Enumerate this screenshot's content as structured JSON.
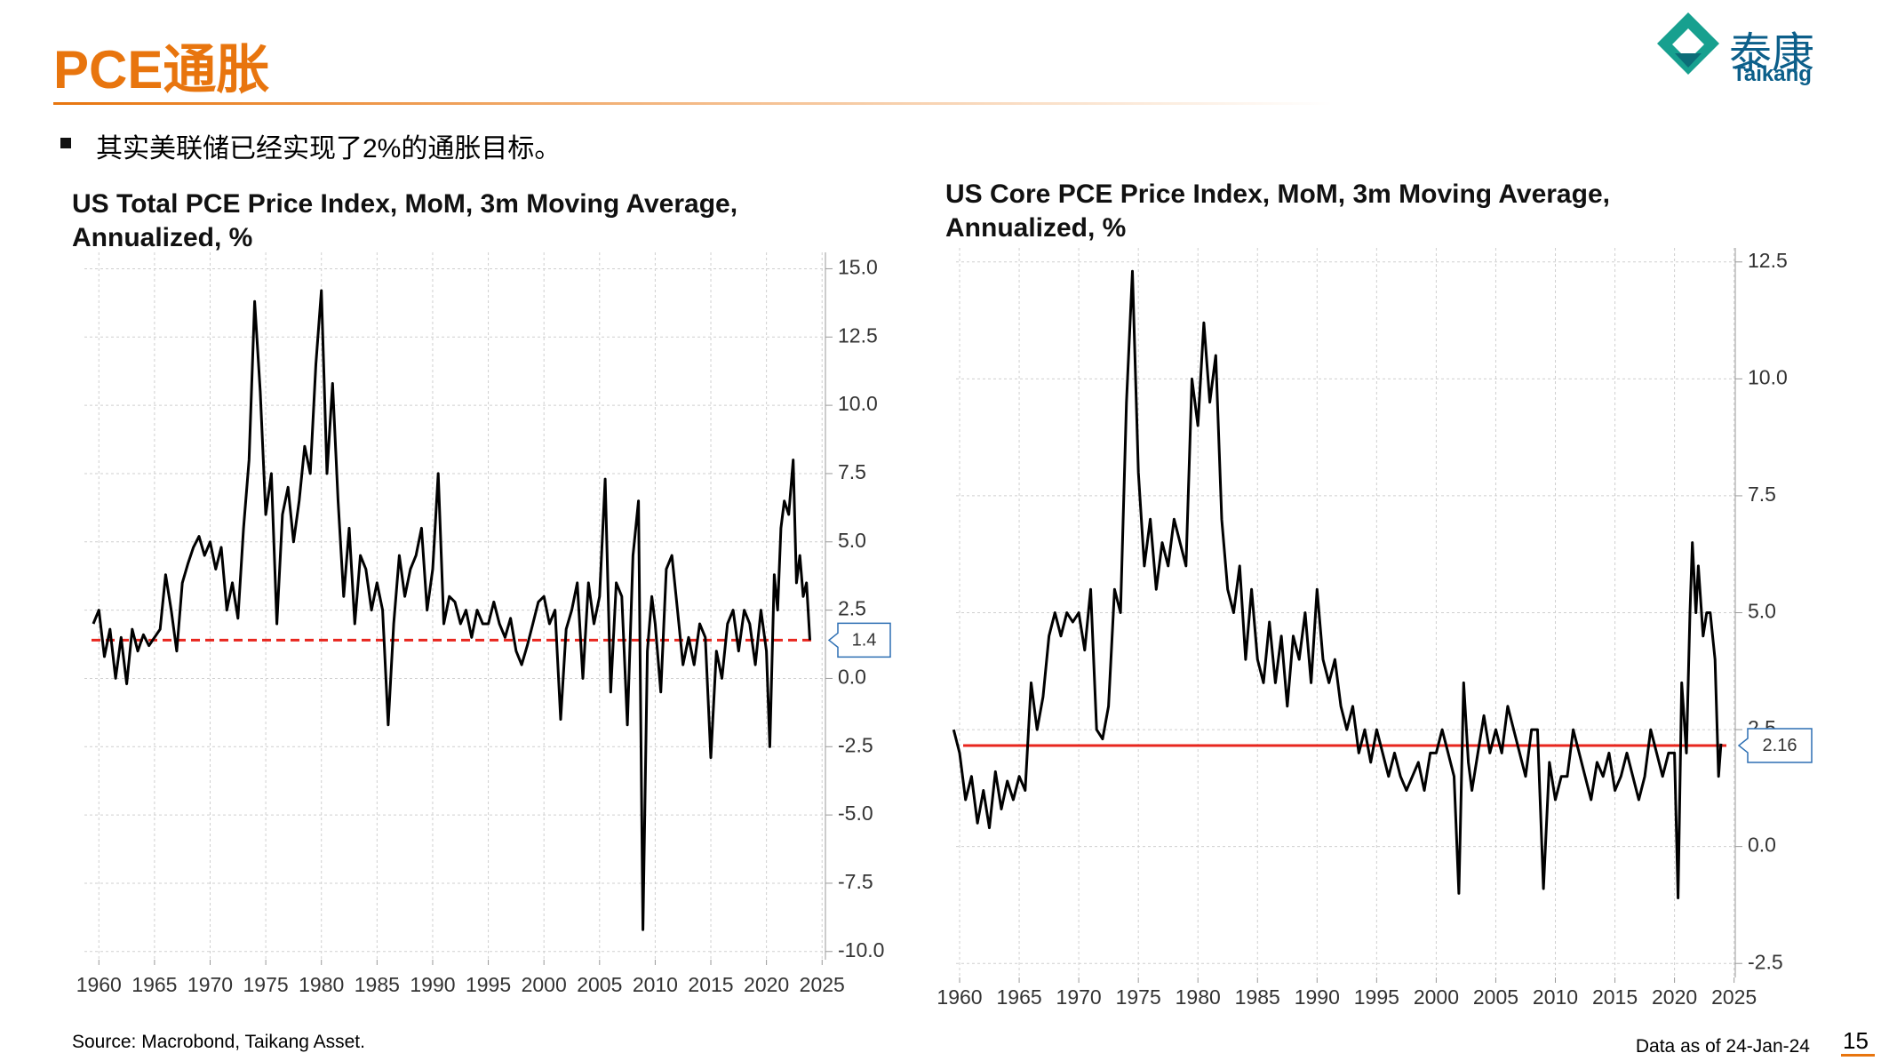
{
  "title": "PCE通胀",
  "logo": {
    "name": "泰康",
    "latin": "Taikang"
  },
  "bullet": "其实美联储已经实现了2%的通胀目标。",
  "source": "Source: Macrobond, Taikang Asset.",
  "data_date": "Data as of 24-Jan-24",
  "page_number": "15",
  "chart_data": [
    {
      "type": "line",
      "title": "US Total PCE Price Index, MoM, 3m Moving Average, Annualized, %",
      "xlim": [
        1958.7,
        2025.3
      ],
      "xticks": [
        1960,
        1965,
        1970,
        1975,
        1980,
        1985,
        1990,
        1995,
        2000,
        2005,
        2010,
        2015,
        2020,
        2025
      ],
      "ylim": [
        -10.3,
        15.6
      ],
      "yticks": [
        {
          "value": -10,
          "label": "-10.0"
        },
        {
          "value": -7.5,
          "label": "-7.5"
        },
        {
          "value": -5,
          "label": "-5.0"
        },
        {
          "value": -2.5,
          "label": "-2.5"
        },
        {
          "value": 0,
          "label": "0.0"
        },
        {
          "value": 2.5,
          "label": "2.5"
        },
        {
          "value": 5,
          "label": "5.0"
        },
        {
          "value": 7.5,
          "label": "7.5"
        },
        {
          "value": 10,
          "label": "10.0"
        },
        {
          "value": 12.5,
          "label": "12.5"
        },
        {
          "value": 15,
          "label": "15.0"
        }
      ],
      "grid": true,
      "reference_value": 1.4,
      "reference_color": "#e8261e",
      "reference_style": "dashed",
      "x": [
        1959.5,
        1960,
        1960.5,
        1961,
        1961.5,
        1962,
        1962.5,
        1963,
        1963.5,
        1964,
        1964.5,
        1965,
        1965.5,
        1966,
        1966.5,
        1967,
        1967.5,
        1968,
        1968.5,
        1969,
        1969.5,
        1970,
        1970.5,
        1971,
        1971.5,
        1972,
        1972.5,
        1973,
        1973.5,
        1974,
        1974.5,
        1975,
        1975.5,
        1976,
        1976.5,
        1977,
        1977.5,
        1978,
        1978.5,
        1979,
        1979.5,
        1980,
        1980.5,
        1981,
        1981.5,
        1982,
        1982.5,
        1983,
        1983.5,
        1984,
        1984.5,
        1985,
        1985.5,
        1986,
        1986.5,
        1987,
        1987.5,
        1988,
        1988.5,
        1989,
        1989.5,
        1990,
        1990.5,
        1991,
        1991.5,
        1992,
        1992.5,
        1993,
        1993.5,
        1994,
        1994.5,
        1995,
        1995.5,
        1996,
        1996.5,
        1997,
        1997.5,
        1998,
        1998.5,
        1999,
        1999.5,
        2000,
        2000.5,
        2001,
        2001.5,
        2002,
        2002.5,
        2003,
        2003.5,
        2004,
        2004.5,
        2005,
        2005.5,
        2006,
        2006.5,
        2007,
        2007.5,
        2008,
        2008.5,
        2008.9,
        2009.3,
        2009.7,
        2010,
        2010.5,
        2011,
        2011.5,
        2012,
        2012.5,
        2013,
        2013.5,
        2014,
        2014.5,
        2015,
        2015.5,
        2016,
        2016.5,
        2017,
        2017.5,
        2018,
        2018.5,
        2019,
        2019.5,
        2020,
        2020.3,
        2020.7,
        2021,
        2021.3,
        2021.6,
        2022,
        2022.4,
        2022.7,
        2023,
        2023.3,
        2023.6,
        2023.9
      ],
      "series": [
        {
          "color": "#000000",
          "values": [
            2.0,
            2.5,
            0.8,
            1.8,
            0.0,
            1.5,
            -0.2,
            1.8,
            1.0,
            1.6,
            1.2,
            1.5,
            1.8,
            3.8,
            2.5,
            1.0,
            3.5,
            4.2,
            4.8,
            5.2,
            4.5,
            5.0,
            4.0,
            4.8,
            2.5,
            3.5,
            2.2,
            5.5,
            8.0,
            13.8,
            10.5,
            6.0,
            7.5,
            2.0,
            6.0,
            7.0,
            5.0,
            6.5,
            8.5,
            7.5,
            11.5,
            14.2,
            7.5,
            10.8,
            6.5,
            3.0,
            5.5,
            2.0,
            4.5,
            4.0,
            2.5,
            3.5,
            2.5,
            -1.7,
            2.0,
            4.5,
            3.0,
            4.0,
            4.5,
            5.5,
            2.5,
            4.0,
            7.5,
            2.0,
            3.0,
            2.8,
            2.0,
            2.5,
            1.5,
            2.5,
            2.0,
            2.0,
            2.8,
            2.0,
            1.5,
            2.2,
            1.0,
            0.5,
            1.2,
            2.0,
            2.8,
            3.0,
            2.0,
            2.5,
            -1.5,
            1.8,
            2.5,
            3.5,
            0.0,
            3.5,
            2.0,
            3.0,
            7.3,
            -0.5,
            3.5,
            3.0,
            -1.7,
            4.5,
            6.5,
            -9.2,
            1.0,
            3.0,
            2.0,
            -0.5,
            4.0,
            4.5,
            2.5,
            0.5,
            1.5,
            0.5,
            2.0,
            1.5,
            -2.9,
            1.0,
            0.0,
            2.0,
            2.5,
            1.0,
            2.5,
            2.0,
            0.5,
            2.5,
            1.0,
            -2.5,
            3.8,
            2.5,
            5.5,
            6.5,
            6.0,
            8.0,
            3.5,
            4.5,
            3.0,
            3.5,
            1.4
          ]
        }
      ]
    },
    {
      "type": "line",
      "title": "US Core PCE Price Index, MoM, 3m Moving Average, Annualized, %",
      "xlim": [
        1959.7,
        2025.1
      ],
      "xticks": [
        1960,
        1965,
        1970,
        1975,
        1980,
        1985,
        1990,
        1995,
        2000,
        2005,
        2010,
        2015,
        2020,
        2025
      ],
      "ylim": [
        -2.8,
        12.8
      ],
      "yticks": [
        {
          "value": -2.5,
          "label": "-2.5"
        },
        {
          "value": 0,
          "label": "0.0"
        },
        {
          "value": 2.5,
          "label": "2.5"
        },
        {
          "value": 5,
          "label": "5.0"
        },
        {
          "value": 7.5,
          "label": "7.5"
        },
        {
          "value": 10,
          "label": "10.0"
        },
        {
          "value": 12.5,
          "label": "12.5"
        }
      ],
      "grid": true,
      "reference_value": 2.16,
      "reference_color": "#e8261e",
      "reference_style": "solid",
      "x": [
        1959.5,
        1960,
        1960.5,
        1961,
        1961.5,
        1962,
        1962.5,
        1963,
        1963.5,
        1964,
        1964.5,
        1965,
        1965.5,
        1966,
        1966.5,
        1967,
        1967.5,
        1968,
        1968.5,
        1969,
        1969.5,
        1970,
        1970.5,
        1971,
        1971.5,
        1972,
        1972.5,
        1973,
        1973.5,
        1974,
        1974.5,
        1975,
        1975.5,
        1976,
        1976.5,
        1977,
        1977.5,
        1978,
        1978.5,
        1979,
        1979.5,
        1980,
        1980.5,
        1981,
        1981.5,
        1982,
        1982.5,
        1983,
        1983.5,
        1984,
        1984.5,
        1985,
        1985.5,
        1986,
        1986.5,
        1987,
        1987.5,
        1988,
        1988.5,
        1989,
        1989.5,
        1990,
        1990.5,
        1991,
        1991.5,
        1992,
        1992.5,
        1993,
        1993.5,
        1994,
        1994.5,
        1995,
        1995.5,
        1996,
        1996.5,
        1997,
        1997.5,
        1998,
        1998.5,
        1999,
        1999.5,
        2000,
        2000.5,
        2001,
        2001.5,
        2001.9,
        2002.3,
        2002.7,
        2003,
        2003.5,
        2004,
        2004.5,
        2005,
        2005.5,
        2006,
        2006.5,
        2007,
        2007.5,
        2008,
        2008.5,
        2009,
        2009.5,
        2010,
        2010.5,
        2011,
        2011.5,
        2012,
        2012.5,
        2013,
        2013.5,
        2014,
        2014.5,
        2015,
        2015.5,
        2016,
        2016.5,
        2017,
        2017.5,
        2018,
        2018.5,
        2019,
        2019.5,
        2020,
        2020.3,
        2020.6,
        2021,
        2021.3,
        2021.5,
        2021.8,
        2022,
        2022.4,
        2022.7,
        2023,
        2023.4,
        2023.7,
        2023.9
      ],
      "series": [
        {
          "color": "#000000",
          "values": [
            2.5,
            2.0,
            1.0,
            1.5,
            0.5,
            1.2,
            0.4,
            1.6,
            0.8,
            1.4,
            1.0,
            1.5,
            1.2,
            3.5,
            2.5,
            3.2,
            4.5,
            5.0,
            4.5,
            5.0,
            4.8,
            5.0,
            4.2,
            5.5,
            2.5,
            2.3,
            3.0,
            5.5,
            5.0,
            9.5,
            12.3,
            8.0,
            6.0,
            7.0,
            5.5,
            6.5,
            6.0,
            7.0,
            6.5,
            6.0,
            10.0,
            9.0,
            11.2,
            9.5,
            10.5,
            7.0,
            5.5,
            5.0,
            6.0,
            4.0,
            5.5,
            4.0,
            3.5,
            4.8,
            3.5,
            4.5,
            3.0,
            4.5,
            4.0,
            5.0,
            3.5,
            5.5,
            4.0,
            3.5,
            4.0,
            3.0,
            2.5,
            3.0,
            2.0,
            2.5,
            1.8,
            2.5,
            2.0,
            1.5,
            2.0,
            1.5,
            1.2,
            1.5,
            1.8,
            1.2,
            2.0,
            2.0,
            2.5,
            2.0,
            1.5,
            -1.0,
            3.5,
            1.8,
            1.2,
            2.0,
            2.8,
            2.0,
            2.5,
            2.0,
            3.0,
            2.5,
            2.0,
            1.5,
            2.5,
            2.5,
            -0.9,
            1.8,
            1.0,
            1.5,
            1.5,
            2.5,
            2.0,
            1.5,
            1.0,
            1.8,
            1.5,
            2.0,
            1.2,
            1.5,
            2.0,
            1.5,
            1.0,
            1.5,
            2.5,
            2.0,
            1.5,
            2.0,
            2.0,
            -1.1,
            3.5,
            2.0,
            5.0,
            6.5,
            5.0,
            6.0,
            4.5,
            5.0,
            5.0,
            4.0,
            1.5,
            2.2
          ]
        }
      ]
    }
  ]
}
